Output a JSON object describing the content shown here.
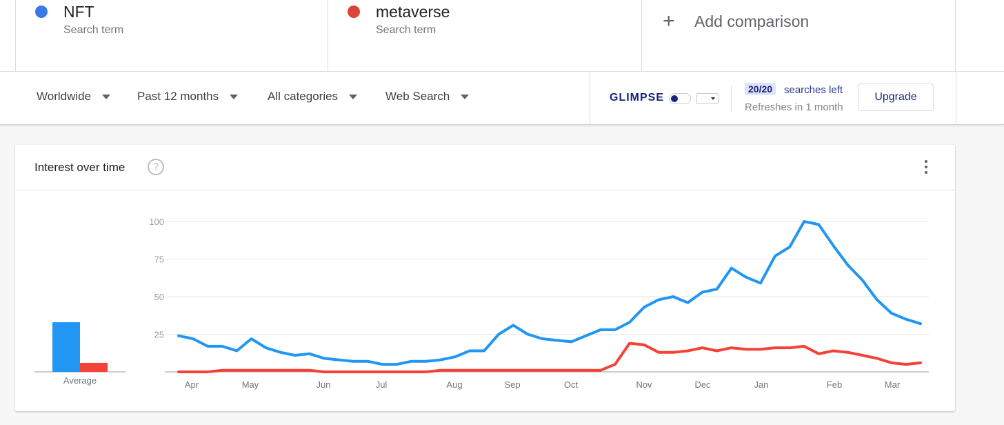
{
  "comparison": {
    "terms": [
      {
        "name": "NFT",
        "subtitle": "Search term",
        "color": "#3b78e7"
      },
      {
        "name": "metaverse",
        "subtitle": "Search term",
        "color": "#db4437"
      }
    ],
    "add_label": "Add comparison",
    "add_icon": "plus-icon"
  },
  "filters": {
    "region": "Worldwide",
    "period": "Past 12 months",
    "category": "All categories",
    "search_type": "Web Search"
  },
  "glimpse": {
    "logo": "GLIMPSE",
    "badge": "20/20",
    "searches_left": "searches left",
    "refreshes": "Refreshes in 1 month",
    "upgrade_label": "Upgrade"
  },
  "card": {
    "title": "Interest over time",
    "help_icon": "help-icon",
    "more_icon": "more-vert-icon"
  },
  "chart_data": {
    "type": "line",
    "y_ticks": [
      "100",
      "75",
      "50",
      "25"
    ],
    "ylim": [
      0,
      100
    ],
    "x_labels": [
      "Apr",
      "May",
      "Jun",
      "Jul",
      "Aug",
      "Sep",
      "Oct",
      "Nov",
      "Dec",
      "Jan",
      "Feb",
      "Mar"
    ],
    "average_label": "Average",
    "grid": true,
    "series": [
      {
        "name": "NFT",
        "color": "#2196f3",
        "average": 33,
        "values": [
          24,
          22,
          17,
          17,
          14,
          22,
          16,
          13,
          11,
          12,
          9,
          8,
          7,
          7,
          5,
          5,
          7,
          7,
          8,
          10,
          14,
          14,
          25,
          31,
          25,
          22,
          21,
          20,
          24,
          28,
          28,
          33,
          43,
          48,
          50,
          46,
          53,
          55,
          69,
          63,
          59,
          77,
          83,
          100,
          98,
          84,
          71,
          61,
          48,
          39,
          35,
          32
        ]
      },
      {
        "name": "metaverse",
        "color": "#f44336",
        "average": 6,
        "values": [
          0,
          0,
          0,
          1,
          1,
          1,
          1,
          1,
          1,
          1,
          0,
          0,
          0,
          0,
          0,
          0,
          0,
          0,
          1,
          1,
          1,
          1,
          1,
          1,
          1,
          1,
          1,
          1,
          1,
          1,
          5,
          19,
          18,
          13,
          13,
          14,
          16,
          14,
          16,
          15,
          15,
          16,
          16,
          17,
          12,
          14,
          13,
          11,
          9,
          6,
          5,
          6
        ]
      }
    ]
  }
}
